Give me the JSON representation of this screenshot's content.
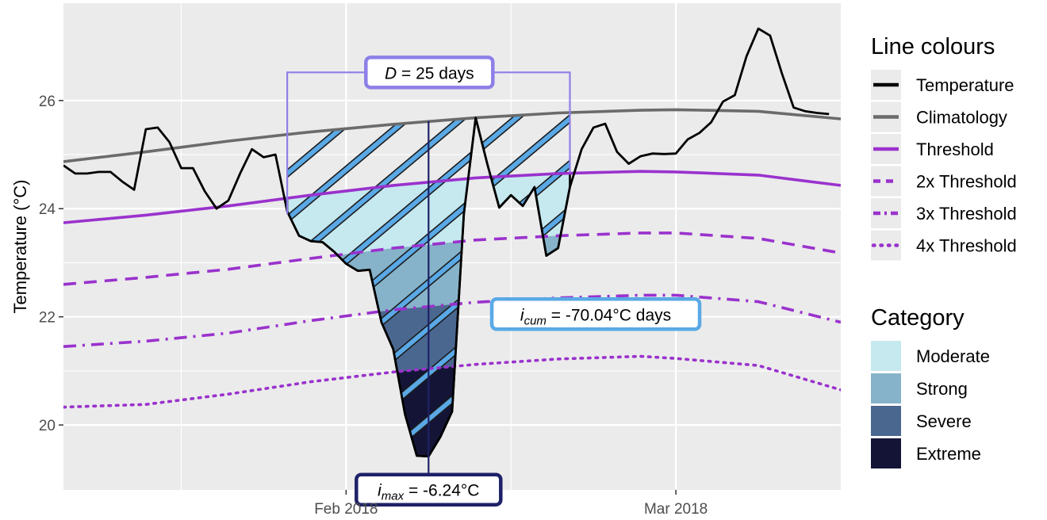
{
  "chart_data": {
    "type": "line",
    "ylabel": "Temperature (°C)",
    "x_ticks": [
      {
        "date": "2018-02-01",
        "label": "Feb 2018"
      },
      {
        "date": "2018-03-01",
        "label": "Mar 2018"
      }
    ],
    "x_range": [
      "2018-01-08",
      "2018-03-15"
    ],
    "ylim": [
      18.8,
      27.8
    ],
    "y_ticks": [
      20,
      22,
      24,
      26
    ],
    "grid": true,
    "legend_placement": "right",
    "series": [
      {
        "name": "Temperature",
        "style": "solid",
        "color": "#000000",
        "points": [
          [
            "2018-01-08",
            24.8
          ],
          [
            "2018-01-09",
            24.65
          ],
          [
            "2018-01-10",
            24.65
          ],
          [
            "2018-01-11",
            24.68
          ],
          [
            "2018-01-12",
            24.68
          ],
          [
            "2018-01-13",
            24.5
          ],
          [
            "2018-01-14",
            24.35
          ],
          [
            "2018-01-15",
            25.47
          ],
          [
            "2018-01-16",
            25.5
          ],
          [
            "2018-01-17",
            25.23
          ],
          [
            "2018-01-18",
            24.75
          ],
          [
            "2018-01-19",
            24.75
          ],
          [
            "2018-01-20",
            24.32
          ],
          [
            "2018-01-21",
            24.0
          ],
          [
            "2018-01-22",
            24.15
          ],
          [
            "2018-01-23",
            24.65
          ],
          [
            "2018-01-24",
            25.1
          ],
          [
            "2018-01-25",
            24.95
          ],
          [
            "2018-01-26",
            25.0
          ],
          [
            "2018-01-27",
            23.95
          ],
          [
            "2018-01-28",
            23.5
          ],
          [
            "2018-01-29",
            23.4
          ],
          [
            "2018-01-30",
            23.38
          ],
          [
            "2018-01-31",
            23.2
          ],
          [
            "2018-02-01",
            22.98
          ],
          [
            "2018-02-02",
            22.85
          ],
          [
            "2018-02-03",
            22.87
          ],
          [
            "2018-02-04",
            21.9
          ],
          [
            "2018-02-05",
            21.4
          ],
          [
            "2018-02-06",
            20.2
          ],
          [
            "2018-02-07",
            19.43
          ],
          [
            "2018-02-08",
            19.42
          ],
          [
            "2018-02-09",
            19.78
          ],
          [
            "2018-02-10",
            20.25
          ],
          [
            "2018-02-11",
            23.9
          ],
          [
            "2018-02-12",
            25.68
          ],
          [
            "2018-02-13",
            24.82
          ],
          [
            "2018-02-14",
            24.02
          ],
          [
            "2018-02-15",
            24.25
          ],
          [
            "2018-02-16",
            24.05
          ],
          [
            "2018-02-17",
            24.4
          ],
          [
            "2018-02-18",
            23.13
          ],
          [
            "2018-02-19",
            23.27
          ],
          [
            "2018-02-20",
            24.4
          ],
          [
            "2018-02-21",
            25.1
          ],
          [
            "2018-02-22",
            25.5
          ],
          [
            "2018-02-23",
            25.57
          ],
          [
            "2018-02-24",
            25.05
          ],
          [
            "2018-02-25",
            24.83
          ],
          [
            "2018-02-26",
            24.97
          ],
          [
            "2018-02-27",
            25.02
          ],
          [
            "2018-02-28",
            25.01
          ],
          [
            "2018-03-01",
            25.02
          ],
          [
            "2018-03-02",
            25.28
          ],
          [
            "2018-03-03",
            25.4
          ],
          [
            "2018-03-04",
            25.6
          ],
          [
            "2018-03-05",
            25.98
          ],
          [
            "2018-03-06",
            26.1
          ],
          [
            "2018-03-07",
            26.82
          ],
          [
            "2018-03-08",
            27.33
          ],
          [
            "2018-03-09",
            27.2
          ],
          [
            "2018-03-10",
            26.5
          ],
          [
            "2018-03-11",
            25.87
          ],
          [
            "2018-03-12",
            25.8
          ],
          [
            "2018-03-13",
            25.77
          ],
          [
            "2018-03-14",
            25.75
          ]
        ]
      },
      {
        "name": "Climatology",
        "style": "solid",
        "color": "#6b6b6b",
        "points": [
          [
            "2018-01-08",
            24.87
          ],
          [
            "2018-01-15",
            25.05
          ],
          [
            "2018-01-22",
            25.25
          ],
          [
            "2018-01-29",
            25.42
          ],
          [
            "2018-02-05",
            25.56
          ],
          [
            "2018-02-12",
            25.68
          ],
          [
            "2018-02-19",
            25.77
          ],
          [
            "2018-02-26",
            25.82
          ],
          [
            "2018-03-01",
            25.83
          ],
          [
            "2018-03-08",
            25.8
          ],
          [
            "2018-03-15",
            25.66
          ]
        ]
      },
      {
        "name": "Threshold",
        "style": "solid",
        "color": "#9a32cd",
        "points": [
          [
            "2018-01-08",
            23.74
          ],
          [
            "2018-01-15",
            23.88
          ],
          [
            "2018-01-22",
            24.05
          ],
          [
            "2018-01-29",
            24.25
          ],
          [
            "2018-02-05",
            24.43
          ],
          [
            "2018-02-12",
            24.57
          ],
          [
            "2018-02-19",
            24.65
          ],
          [
            "2018-02-26",
            24.69
          ],
          [
            "2018-03-01",
            24.68
          ],
          [
            "2018-03-08",
            24.62
          ],
          [
            "2018-03-15",
            24.43
          ]
        ]
      },
      {
        "name": "2x Threshold",
        "style": "dashed",
        "color": "#9a32cd",
        "points": [
          [
            "2018-01-08",
            22.6
          ],
          [
            "2018-01-15",
            22.73
          ],
          [
            "2018-01-22",
            22.88
          ],
          [
            "2018-01-29",
            23.08
          ],
          [
            "2018-02-05",
            23.27
          ],
          [
            "2018-02-12",
            23.42
          ],
          [
            "2018-02-19",
            23.5
          ],
          [
            "2018-02-26",
            23.55
          ],
          [
            "2018-03-01",
            23.55
          ],
          [
            "2018-03-08",
            23.45
          ],
          [
            "2018-03-15",
            23.18
          ]
        ]
      },
      {
        "name": "3x Threshold",
        "style": "dashdot",
        "color": "#9a32cd",
        "points": [
          [
            "2018-01-08",
            21.45
          ],
          [
            "2018-01-15",
            21.55
          ],
          [
            "2018-01-22",
            21.7
          ],
          [
            "2018-01-29",
            21.93
          ],
          [
            "2018-02-05",
            22.13
          ],
          [
            "2018-02-12",
            22.27
          ],
          [
            "2018-02-19",
            22.35
          ],
          [
            "2018-02-26",
            22.4
          ],
          [
            "2018-03-01",
            22.4
          ],
          [
            "2018-03-08",
            22.28
          ],
          [
            "2018-03-15",
            21.9
          ]
        ]
      },
      {
        "name": "4x Threshold",
        "style": "dotted",
        "color": "#9a32cd",
        "points": [
          [
            "2018-01-08",
            20.33
          ],
          [
            "2018-01-15",
            20.38
          ],
          [
            "2018-01-22",
            20.57
          ],
          [
            "2018-01-29",
            20.8
          ],
          [
            "2018-02-05",
            20.98
          ],
          [
            "2018-02-12",
            21.12
          ],
          [
            "2018-02-19",
            21.22
          ],
          [
            "2018-02-26",
            21.27
          ],
          [
            "2018-03-01",
            21.23
          ],
          [
            "2018-03-08",
            21.1
          ],
          [
            "2018-03-15",
            20.65
          ]
        ]
      }
    ],
    "event": {
      "start": "2018-01-27",
      "end": "2018-02-20",
      "peak_date": "2018-02-08",
      "duration_label": "D = 25 days",
      "imax_label": "-6.24°C",
      "icum_label": "-70.04°C days"
    },
    "category_colors": {
      "Moderate": "#c6e8ef",
      "Strong": "#86b3c9",
      "Severe": "#4a678f",
      "Extreme": "#141536"
    },
    "hatch_color": "#5aa9e6",
    "duration_color": "#8d7fe8",
    "imax_color": "#1f2167",
    "icum_color": "#5aa9e6"
  },
  "annotations": {
    "d_symbol": "D",
    "d_rest": " = 25 days",
    "imax_sym": "i",
    "imax_sub": "max",
    "imax_rest": " = -6.24°C",
    "icum_sym": "i",
    "icum_sub": "cum",
    "icum_rest": " = -70.04°C days"
  },
  "legend": {
    "lines_title": "Line colours",
    "lines": [
      {
        "label": "Temperature",
        "color": "#000000",
        "style": "solid"
      },
      {
        "label": "Climatology",
        "color": "#6b6b6b",
        "style": "solid"
      },
      {
        "label": "Threshold",
        "color": "#9a32cd",
        "style": "solid"
      },
      {
        "label": "2x Threshold",
        "color": "#9a32cd",
        "style": "dashed"
      },
      {
        "label": "3x Threshold",
        "color": "#9a32cd",
        "style": "dashdot"
      },
      {
        "label": "4x Threshold",
        "color": "#9a32cd",
        "style": "dotted"
      }
    ],
    "category_title": "Category",
    "categories": [
      {
        "label": "Moderate",
        "color": "#c6e8ef"
      },
      {
        "label": "Strong",
        "color": "#86b3c9"
      },
      {
        "label": "Severe",
        "color": "#4a678f"
      },
      {
        "label": "Extreme",
        "color": "#141536"
      }
    ]
  }
}
